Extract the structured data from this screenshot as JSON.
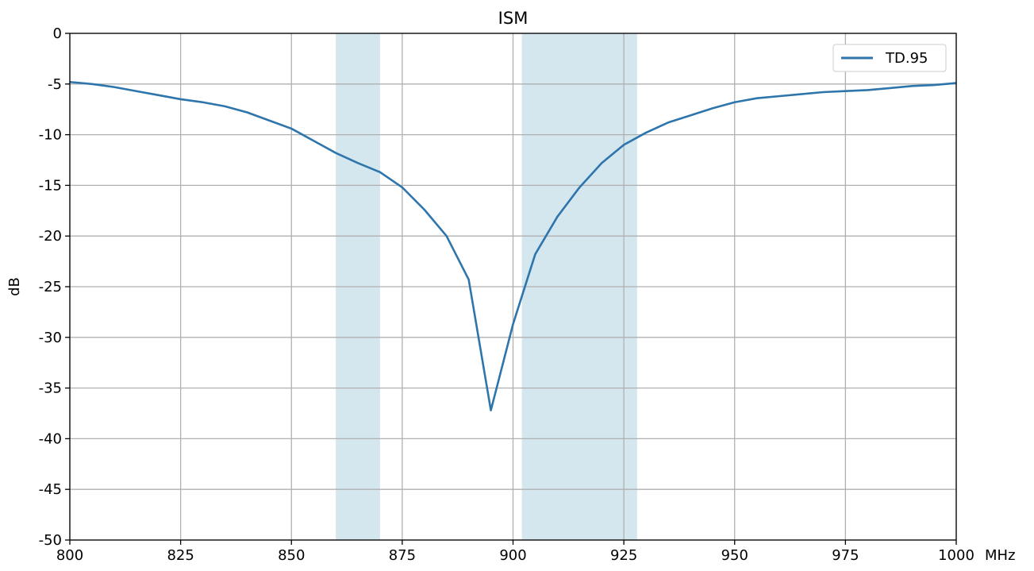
{
  "chart_data": {
    "type": "line",
    "title": "ISM",
    "xlabel": "MHz",
    "ylabel": "dB",
    "xlim": [
      800,
      1000
    ],
    "ylim": [
      -50,
      0
    ],
    "x_ticks": [
      "800",
      "825",
      "850",
      "875",
      "900",
      "925",
      "950",
      "975",
      "1000"
    ],
    "y_ticks": [
      "0",
      "-5",
      "-10",
      "-15",
      "-20",
      "-25",
      "-30",
      "-35",
      "-40",
      "-45",
      "-50"
    ],
    "grid": true,
    "legend_position": "top-right",
    "highlight_bands": [
      {
        "x_start": 860,
        "x_end": 870,
        "color": "#d4e7ef"
      },
      {
        "x_start": 902,
        "x_end": 928,
        "color": "#d4e7ef"
      }
    ],
    "series": [
      {
        "name": "TD.95",
        "color": "#2e75ac",
        "x": [
          800,
          805,
          810,
          815,
          820,
          825,
          830,
          835,
          840,
          845,
          850,
          855,
          860,
          865,
          870,
          875,
          880,
          885,
          890,
          895,
          900,
          905,
          910,
          915,
          920,
          925,
          930,
          935,
          940,
          945,
          950,
          955,
          960,
          965,
          970,
          975,
          980,
          985,
          990,
          995,
          1000
        ],
        "y": [
          -4.8,
          -5.0,
          -5.3,
          -5.7,
          -6.1,
          -6.5,
          -6.8,
          -7.2,
          -7.8,
          -8.6,
          -9.4,
          -10.6,
          -11.8,
          -12.8,
          -13.7,
          -15.2,
          -17.4,
          -20.0,
          -24.3,
          -37.2,
          -28.7,
          -21.8,
          -18.1,
          -15.2,
          -12.8,
          -11.0,
          -9.8,
          -8.8,
          -8.1,
          -7.4,
          -6.8,
          -6.4,
          -6.2,
          -6.0,
          -5.8,
          -5.7,
          -5.6,
          -5.4,
          -5.2,
          -5.1,
          -4.9
        ]
      }
    ]
  }
}
